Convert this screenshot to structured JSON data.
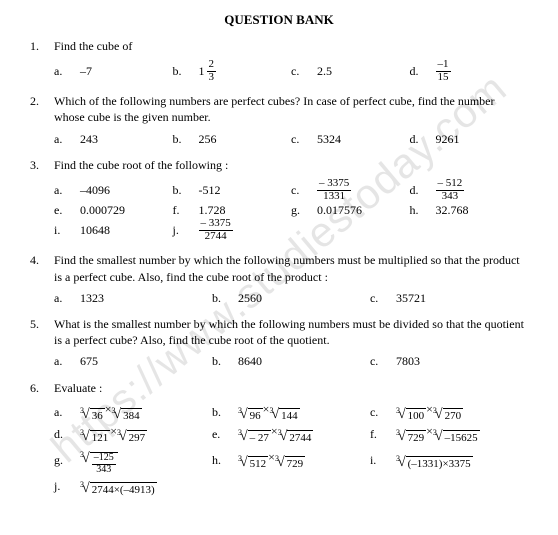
{
  "title": "QUESTION BANK",
  "watermark": "https://www.studiestoday.com",
  "questions": [
    {
      "num": "1.",
      "text": "Find the cube of",
      "cols": 4,
      "opts": [
        {
          "l": "a.",
          "t": "plain",
          "v": "–7"
        },
        {
          "l": "b.",
          "t": "mixed",
          "whole": "1",
          "n": "2",
          "d": "3"
        },
        {
          "l": "c.",
          "t": "plain",
          "v": "2.5"
        },
        {
          "l": "d.",
          "t": "frac",
          "n": "–1",
          "d": "15"
        }
      ]
    },
    {
      "num": "2.",
      "text": "Which of the following numbers are perfect cubes? In case of perfect cube, find the number whose cube is the given number.",
      "cols": 4,
      "opts": [
        {
          "l": "a.",
          "t": "plain",
          "v": "243"
        },
        {
          "l": "b.",
          "t": "plain",
          "v": "256"
        },
        {
          "l": "c.",
          "t": "plain",
          "v": "5324"
        },
        {
          "l": "d.",
          "t": "plain",
          "v": "9261"
        }
      ]
    },
    {
      "num": "3.",
      "text": "Find the cube root of the following :",
      "cols": 4,
      "opts": [
        {
          "l": "a.",
          "t": "plain",
          "v": "–4096"
        },
        {
          "l": "b.",
          "t": "plain",
          "v": "-512"
        },
        {
          "l": "c.",
          "t": "frac",
          "n": "– 3375",
          "d": "1331"
        },
        {
          "l": "d.",
          "t": "frac",
          "n": "– 512",
          "d": "343"
        },
        {
          "l": "e.",
          "t": "plain",
          "v": "0.000729"
        },
        {
          "l": "f.",
          "t": "plain",
          "v": "1.728"
        },
        {
          "l": "g.",
          "t": "plain",
          "v": "0.017576"
        },
        {
          "l": "h.",
          "t": "plain",
          "v": "32.768"
        },
        {
          "l": "i.",
          "t": "plain",
          "v": "10648"
        },
        {
          "l": "j.",
          "t": "frac",
          "n": "– 3375",
          "d": "2744"
        }
      ]
    },
    {
      "num": "4.",
      "text": "Find the smallest number by which the following numbers must be multiplied so that the product is a perfect cube. Also, find the cube root of the product :",
      "cols": 3,
      "opts": [
        {
          "l": "a.",
          "t": "plain",
          "v": "1323"
        },
        {
          "l": "b.",
          "t": "plain",
          "v": "2560"
        },
        {
          "l": "c.",
          "t": "plain",
          "v": "35721"
        }
      ]
    },
    {
      "num": "5.",
      "text": "What is the smallest number by which the following numbers must be divided so that the quotient is a perfect cube? Also, find the cube root of the quotient.",
      "cols": 3,
      "opts": [
        {
          "l": "a.",
          "t": "plain",
          "v": "675"
        },
        {
          "l": "b.",
          "t": "plain",
          "v": "8640"
        },
        {
          "l": "c.",
          "t": "plain",
          "v": "7803"
        }
      ]
    },
    {
      "num": "6.",
      "text": "Evaluate :",
      "cols": 3,
      "opts": [
        {
          "l": "a.",
          "t": "rootprod",
          "a": "36",
          "b": "384"
        },
        {
          "l": "b.",
          "t": "rootprod",
          "a": "96",
          "b": "144"
        },
        {
          "l": "c.",
          "t": "rootprod",
          "a": "100",
          "b": "270"
        },
        {
          "l": "d.",
          "t": "rootprod",
          "a": "121",
          "b": "297"
        },
        {
          "l": "e.",
          "t": "rootprod",
          "a": "– 27",
          "b": "2744"
        },
        {
          "l": "f.",
          "t": "rootprod",
          "a": "729",
          "b": "–15625"
        },
        {
          "l": "g.",
          "t": "rootfrac",
          "n": "–125",
          "d": "343"
        },
        {
          "l": "h.",
          "t": "rootprod",
          "a": "512",
          "b": "729"
        },
        {
          "l": "i.",
          "t": "root",
          "arg": "(–1331)×3375"
        },
        {
          "l": "j.",
          "t": "root",
          "arg": "2744×(–4913)"
        }
      ]
    }
  ]
}
